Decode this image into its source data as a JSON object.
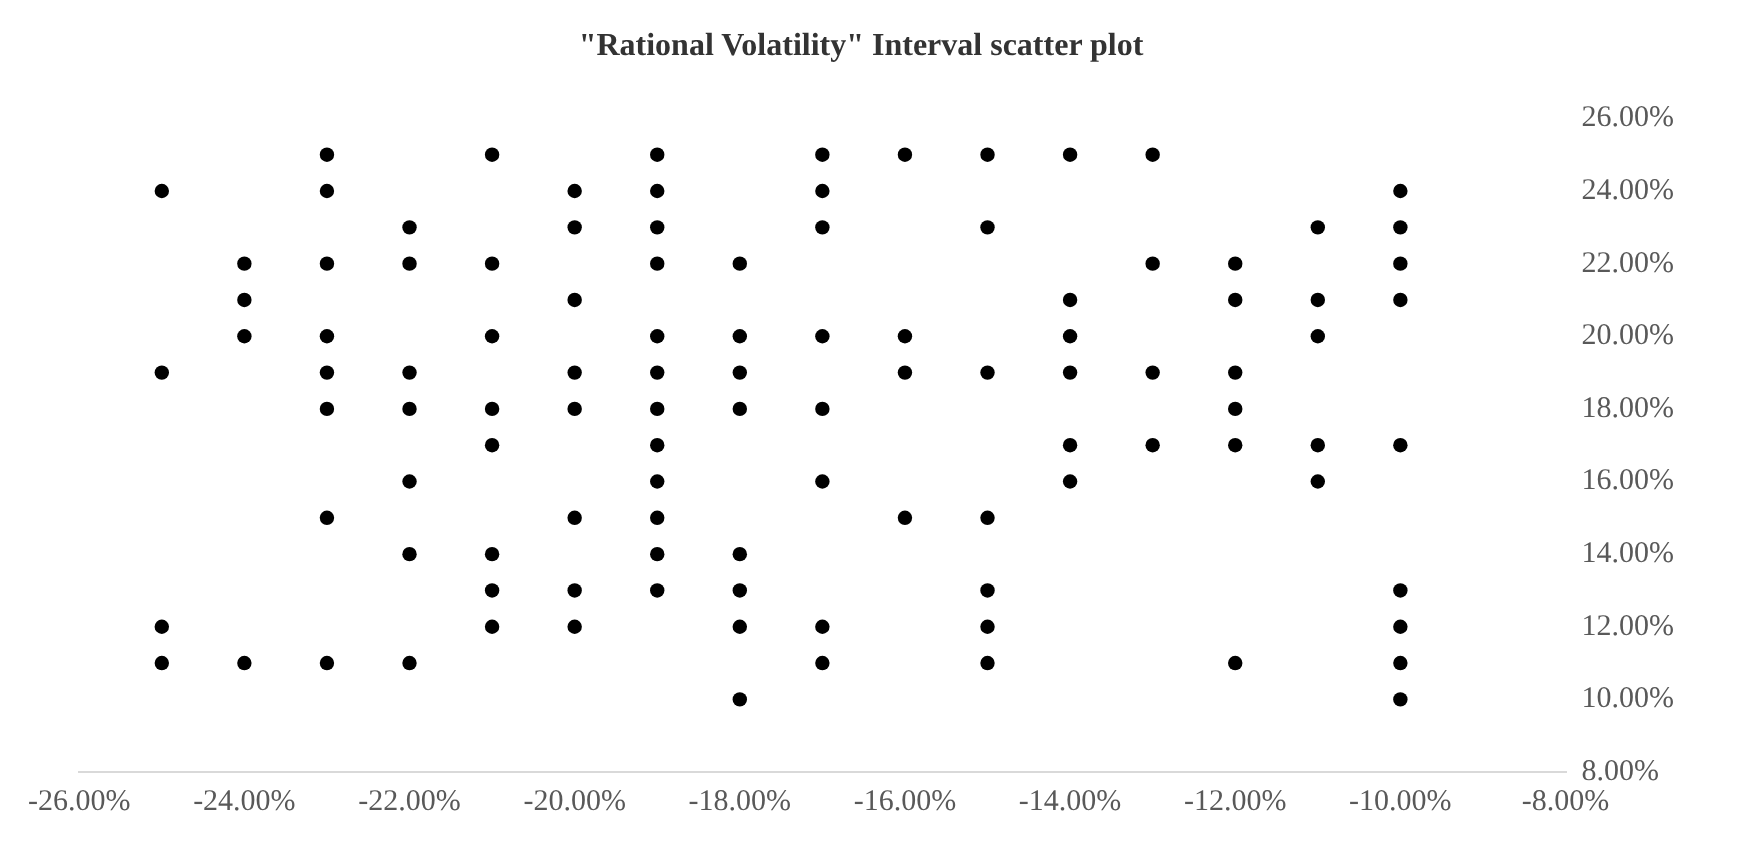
{
  "chart_data": {
    "type": "scatter",
    "title": "\"Rational Volatility\" Interval scatter plot",
    "marker": "circle",
    "grid": false,
    "legend": false,
    "xlim": [
      -26,
      -8
    ],
    "ylim": [
      8,
      26
    ],
    "xticks": [
      {
        "value": -26,
        "label": "-26.00%"
      },
      {
        "value": -24,
        "label": "-24.00%"
      },
      {
        "value": -22,
        "label": "-22.00%"
      },
      {
        "value": -20,
        "label": "-20.00%"
      },
      {
        "value": -18,
        "label": "-18.00%"
      },
      {
        "value": -16,
        "label": "-16.00%"
      },
      {
        "value": -14,
        "label": "-14.00%"
      },
      {
        "value": -12,
        "label": "-12.00%"
      },
      {
        "value": -10,
        "label": "-10.00%"
      },
      {
        "value": -8,
        "label": "-8.00%"
      }
    ],
    "yticks": [
      {
        "value": 8,
        "label": "8.00%"
      },
      {
        "value": 10,
        "label": "10.00%"
      },
      {
        "value": 12,
        "label": "12.00%"
      },
      {
        "value": 14,
        "label": "14.00%"
      },
      {
        "value": 16,
        "label": "16.00%"
      },
      {
        "value": 18,
        "label": "18.00%"
      },
      {
        "value": 20,
        "label": "20.00%"
      },
      {
        "value": 22,
        "label": "22.00%"
      },
      {
        "value": 24,
        "label": "24.00%"
      },
      {
        "value": 26,
        "label": "26.00%"
      }
    ],
    "series": [
      {
        "color": "#000000",
        "x": [
          -25,
          -25,
          -25,
          -25,
          -24,
          -24,
          -24,
          -24,
          -23,
          -23,
          -23,
          -23,
          -23,
          -23,
          -23,
          -23,
          -22,
          -22,
          -22,
          -22,
          -22,
          -22,
          -22,
          -21,
          -21,
          -21,
          -21,
          -21,
          -21,
          -21,
          -21,
          -20,
          -20,
          -20,
          -20,
          -20,
          -20,
          -20,
          -20,
          -19,
          -19,
          -19,
          -19,
          -19,
          -19,
          -19,
          -19,
          -19,
          -19,
          -19,
          -19,
          -18,
          -18,
          -18,
          -18,
          -18,
          -18,
          -18,
          -18,
          -17,
          -17,
          -17,
          -17,
          -17,
          -17,
          -17,
          -17,
          -16,
          -16,
          -16,
          -16,
          -15,
          -15,
          -15,
          -15,
          -15,
          -15,
          -15,
          -14,
          -14,
          -14,
          -14,
          -14,
          -14,
          -13,
          -13,
          -13,
          -13,
          -12,
          -12,
          -12,
          -12,
          -12,
          -12,
          -11,
          -11,
          -11,
          -11,
          -11,
          -10,
          -10,
          -10,
          -10,
          -10,
          -10,
          -10,
          -10,
          -10
        ],
        "values": [
          24,
          19,
          12,
          11,
          22,
          21,
          20,
          11,
          25,
          24,
          22,
          20,
          19,
          18,
          15,
          11,
          23,
          22,
          19,
          18,
          16,
          14,
          11,
          25,
          22,
          20,
          18,
          17,
          14,
          13,
          12,
          24,
          23,
          21,
          19,
          18,
          15,
          13,
          12,
          25,
          24,
          23,
          22,
          20,
          19,
          18,
          17,
          16,
          15,
          14,
          13,
          22,
          20,
          19,
          18,
          14,
          13,
          12,
          10,
          25,
          24,
          23,
          20,
          18,
          16,
          12,
          11,
          25,
          20,
          19,
          15,
          25,
          23,
          19,
          15,
          13,
          12,
          11,
          25,
          21,
          20,
          19,
          17,
          16,
          25,
          22,
          19,
          17,
          22,
          21,
          19,
          18,
          17,
          11,
          23,
          21,
          20,
          17,
          16,
          24,
          23,
          22,
          21,
          17,
          13,
          12,
          11,
          10
        ]
      }
    ]
  }
}
